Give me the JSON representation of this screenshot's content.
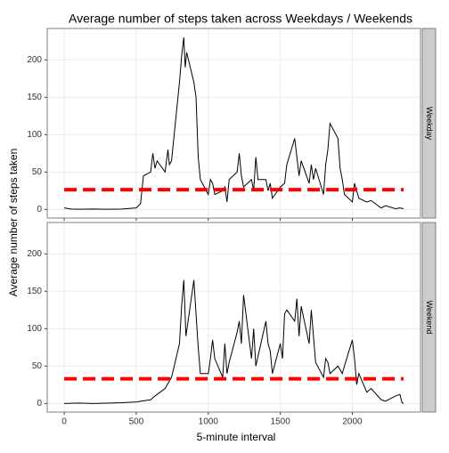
{
  "chart_data": {
    "type": "line",
    "title": "Average number of steps taken across Weekdays / Weekends",
    "x_label": "5-minute interval",
    "y_label": "Average number of steps taken",
    "xlim": [
      -118,
      2473
    ],
    "xticks": [
      0,
      500,
      1000,
      1500,
      2000
    ],
    "ylim": [
      -11.5,
      242
    ],
    "yticks": [
      0,
      50,
      100,
      150,
      200
    ],
    "grid": true,
    "line_color": "#000000",
    "reference_color": "#ff0000",
    "facets": [
      {
        "name": "Weekday",
        "reference_line": 26.5,
        "x": [
          0,
          50,
          100,
          200,
          300,
          400,
          500,
          530,
          550,
          600,
          615,
          630,
          645,
          700,
          720,
          730,
          745,
          800,
          815,
          830,
          840,
          850,
          900,
          915,
          930,
          945,
          1000,
          1015,
          1030,
          1045,
          1100,
          1115,
          1130,
          1145,
          1200,
          1215,
          1230,
          1245,
          1300,
          1315,
          1330,
          1345,
          1400,
          1415,
          1430,
          1445,
          1500,
          1530,
          1545,
          1600,
          1615,
          1630,
          1645,
          1700,
          1715,
          1730,
          1745,
          1800,
          1815,
          1830,
          1845,
          1900,
          1915,
          1930,
          1945,
          2000,
          2015,
          2030,
          2045,
          2100,
          2130,
          2200,
          2230,
          2300,
          2330,
          2355
        ],
        "values": [
          2,
          0.5,
          0.3,
          0.5,
          0.2,
          0.5,
          2,
          8,
          45,
          50,
          75,
          55,
          65,
          50,
          80,
          60,
          65,
          170,
          205,
          230,
          190,
          210,
          170,
          150,
          70,
          40,
          20,
          40,
          35,
          20,
          25,
          30,
          10,
          40,
          50,
          75,
          45,
          30,
          40,
          25,
          70,
          40,
          40,
          25,
          35,
          15,
          30,
          35,
          60,
          95,
          70,
          45,
          65,
          35,
          60,
          40,
          55,
          20,
          60,
          80,
          115,
          95,
          55,
          40,
          20,
          10,
          35,
          25,
          15,
          10,
          12,
          2,
          5,
          1,
          2,
          1
        ]
      },
      {
        "name": "Weekend",
        "reference_line": 33,
        "x": [
          0,
          100,
          200,
          400,
          500,
          600,
          630,
          700,
          730,
          745,
          800,
          815,
          830,
          845,
          900,
          915,
          930,
          945,
          1000,
          1015,
          1030,
          1045,
          1100,
          1115,
          1130,
          1145,
          1200,
          1215,
          1230,
          1245,
          1300,
          1315,
          1330,
          1400,
          1415,
          1430,
          1445,
          1500,
          1515,
          1530,
          1545,
          1600,
          1615,
          1630,
          1645,
          1700,
          1715,
          1730,
          1745,
          1800,
          1815,
          1830,
          1845,
          1900,
          1930,
          1945,
          2000,
          2015,
          2030,
          2045,
          2100,
          2130,
          2200,
          2230,
          2300,
          2330,
          2345,
          2355
        ],
        "values": [
          0,
          0.5,
          0,
          1,
          2,
          5,
          10,
          20,
          30,
          35,
          80,
          130,
          165,
          90,
          165,
          120,
          75,
          40,
          40,
          60,
          85,
          60,
          35,
          80,
          40,
          55,
          95,
          110,
          80,
          145,
          60,
          100,
          50,
          110,
          80,
          70,
          40,
          80,
          60,
          120,
          125,
          110,
          140,
          90,
          130,
          80,
          125,
          90,
          55,
          35,
          60,
          55,
          40,
          50,
          40,
          50,
          85,
          60,
          25,
          40,
          15,
          20,
          5,
          3,
          10,
          12,
          1,
          0
        ]
      }
    ]
  }
}
